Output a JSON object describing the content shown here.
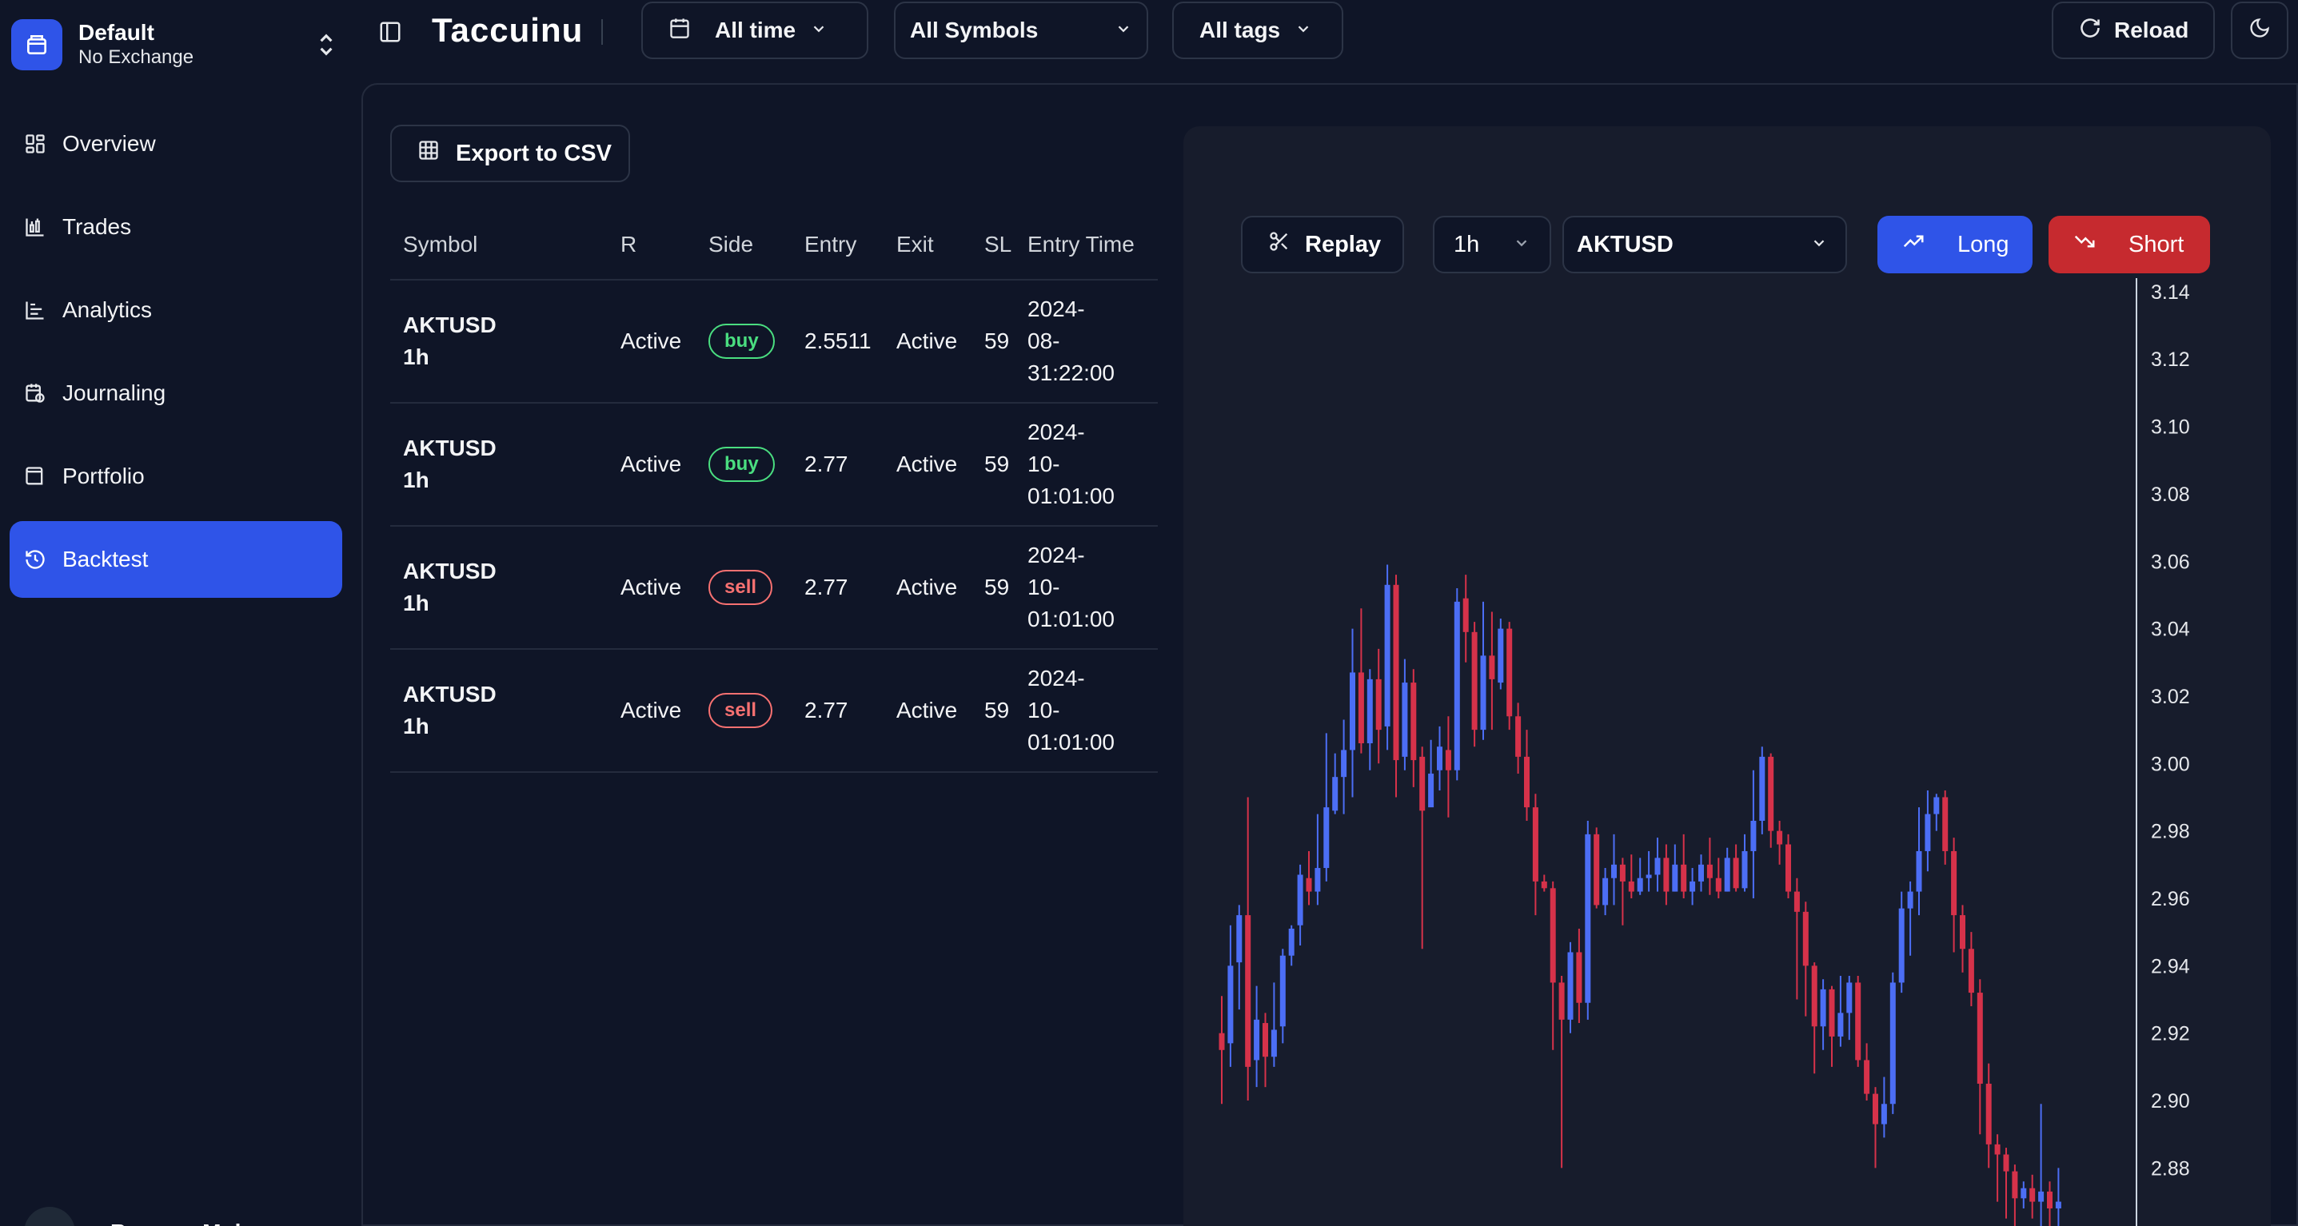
{
  "workspace": {
    "name": "Default",
    "exchange": "No Exchange"
  },
  "nav": [
    {
      "label": "Overview",
      "icon": "dashboard-icon"
    },
    {
      "label": "Trades",
      "icon": "chart-icon"
    },
    {
      "label": "Analytics",
      "icon": "bar-chart-icon"
    },
    {
      "label": "Journaling",
      "icon": "calendar-clock-icon"
    },
    {
      "label": "Portfolio",
      "icon": "wallet-icon"
    },
    {
      "label": "Backtest",
      "icon": "history-icon",
      "active": true
    }
  ],
  "user": {
    "name": "Bassem Mohem"
  },
  "topbar": {
    "title": "Taccuinu",
    "time_filter": "All time",
    "symbol_filter": "All Symbols",
    "tags_filter": "All tags",
    "reload": "Reload"
  },
  "backtest": {
    "export_label": "Export to CSV",
    "columns": [
      "Symbol",
      "R",
      "Side",
      "Entry",
      "Exit",
      "SL",
      "Entry Time"
    ],
    "rows": [
      {
        "symbol": "AKTUSD",
        "timeframe": "1h",
        "r": "Active",
        "side": "buy",
        "entry": "2.5511",
        "exit": "Active",
        "sl": "59",
        "time": [
          "2024-",
          "08-",
          "31:22:00"
        ]
      },
      {
        "symbol": "AKTUSD",
        "timeframe": "1h",
        "r": "Active",
        "side": "buy",
        "entry": "2.77",
        "exit": "Active",
        "sl": "59",
        "time": [
          "2024-",
          "10-",
          "01:01:00"
        ]
      },
      {
        "symbol": "AKTUSD",
        "timeframe": "1h",
        "r": "Active",
        "side": "sell",
        "entry": "2.77",
        "exit": "Active",
        "sl": "59",
        "time": [
          "2024-",
          "10-",
          "01:01:00"
        ]
      },
      {
        "symbol": "AKTUSD",
        "timeframe": "1h",
        "r": "Active",
        "side": "sell",
        "entry": "2.77",
        "exit": "Active",
        "sl": "59",
        "time": [
          "2024-",
          "10-",
          "01:01:00"
        ]
      }
    ]
  },
  "chart_controls": {
    "replay": "Replay",
    "timeframe": "1h",
    "symbol": "AKTUSD",
    "long": "Long",
    "short": "Short"
  },
  "chart_data": {
    "type": "candlestick",
    "symbol": "AKTUSD",
    "y_ticks": [
      "3.14",
      "3.12",
      "3.10",
      "3.08",
      "3.06",
      "3.04",
      "3.02",
      "3.00",
      "2.98",
      "2.96",
      "2.94",
      "2.92",
      "2.90",
      "2.88"
    ],
    "ylim": [
      2.868,
      3.144
    ],
    "up_color": "#4c6ef5",
    "down_color": "#d6324a",
    "candles": [
      [
        2.92,
        2.915,
        2.931,
        2.899
      ],
      [
        2.917,
        2.94,
        2.952,
        2.91
      ],
      [
        2.941,
        2.955,
        2.958,
        2.927
      ],
      [
        2.955,
        2.91,
        2.99,
        2.9
      ],
      [
        2.912,
        2.924,
        2.934,
        2.904
      ],
      [
        2.923,
        2.913,
        2.926,
        2.904
      ],
      [
        2.913,
        2.921,
        2.935,
        2.91
      ],
      [
        2.922,
        2.943,
        2.945,
        2.917
      ],
      [
        2.943,
        2.951,
        2.952,
        2.94
      ],
      [
        2.952,
        2.967,
        2.97,
        2.946
      ],
      [
        2.966,
        2.962,
        2.974,
        2.958
      ],
      [
        2.962,
        2.969,
        2.985,
        2.958
      ],
      [
        2.969,
        2.987,
        3.009,
        2.965
      ],
      [
        2.986,
        2.996,
        3.003,
        2.985
      ],
      [
        2.996,
        3.004,
        3.013,
        2.985
      ],
      [
        3.004,
        3.027,
        3.04,
        2.99
      ],
      [
        3.027,
        3.006,
        3.046,
        3.003
      ],
      [
        3.006,
        3.025,
        3.028,
        2.998
      ],
      [
        3.025,
        3.01,
        3.034,
        3.0
      ],
      [
        3.011,
        3.053,
        3.059,
        3.004
      ],
      [
        3.053,
        3.001,
        3.056,
        2.99
      ],
      [
        3.002,
        3.024,
        3.031,
        2.998
      ],
      [
        3.024,
        3.001,
        3.028,
        2.993
      ],
      [
        3.002,
        2.986,
        3.005,
        2.945
      ],
      [
        2.987,
        2.997,
        3.007,
        2.99
      ],
      [
        2.998,
        3.005,
        3.011,
        2.992
      ],
      [
        3.004,
        2.998,
        3.014,
        2.984
      ],
      [
        2.998,
        3.048,
        3.052,
        2.995
      ],
      [
        3.049,
        3.039,
        3.056,
        3.03
      ],
      [
        3.039,
        3.01,
        3.042,
        3.005
      ],
      [
        3.01,
        3.032,
        3.048,
        3.007
      ],
      [
        3.032,
        3.025,
        3.045,
        3.01
      ],
      [
        3.024,
        3.04,
        3.043,
        3.022
      ],
      [
        3.04,
        3.014,
        3.042,
        3.01
      ],
      [
        3.014,
        3.002,
        3.018,
        2.997
      ],
      [
        3.002,
        2.987,
        3.01,
        2.983
      ],
      [
        2.987,
        2.965,
        2.991,
        2.955
      ],
      [
        2.965,
        2.963,
        2.967,
        2.962
      ],
      [
        2.963,
        2.935,
        2.965,
        2.915
      ],
      [
        2.935,
        2.924,
        2.937,
        2.88
      ],
      [
        2.924,
        2.944,
        2.947,
        2.92
      ],
      [
        2.944,
        2.929,
        2.951,
        2.923
      ],
      [
        2.929,
        2.979,
        2.983,
        2.924
      ],
      [
        2.979,
        2.958,
        2.981,
        2.957
      ],
      [
        2.958,
        2.966,
        2.969,
        2.955
      ],
      [
        2.966,
        2.97,
        2.979,
        2.958
      ],
      [
        2.97,
        2.965,
        2.972,
        2.952
      ],
      [
        2.965,
        2.962,
        2.973,
        2.96
      ],
      [
        2.962,
        2.966,
        2.972,
        2.961
      ],
      [
        2.966,
        2.967,
        2.974,
        2.962
      ],
      [
        2.967,
        2.972,
        2.978,
        2.962
      ],
      [
        2.972,
        2.962,
        2.976,
        2.958
      ],
      [
        2.962,
        2.97,
        2.976,
        2.962
      ],
      [
        2.97,
        2.962,
        2.979,
        2.96
      ],
      [
        2.962,
        2.965,
        2.969,
        2.958
      ],
      [
        2.965,
        2.97,
        2.973,
        2.962
      ],
      [
        2.97,
        2.966,
        2.978,
        2.961
      ],
      [
        2.966,
        2.962,
        2.972,
        2.96
      ],
      [
        2.962,
        2.972,
        2.975,
        2.962
      ],
      [
        2.972,
        2.963,
        2.976,
        2.962
      ],
      [
        2.963,
        2.974,
        2.979,
        2.962
      ],
      [
        2.974,
        2.983,
        2.998,
        2.96
      ],
      [
        2.983,
        3.002,
        3.005,
        2.979
      ],
      [
        3.002,
        2.98,
        3.003,
        2.975
      ],
      [
        2.98,
        2.976,
        2.983,
        2.97
      ],
      [
        2.976,
        2.962,
        2.979,
        2.96
      ],
      [
        2.962,
        2.956,
        2.966,
        2.93
      ],
      [
        2.956,
        2.94,
        2.959,
        2.925
      ],
      [
        2.94,
        2.922,
        2.941,
        2.908
      ],
      [
        2.922,
        2.933,
        2.936,
        2.915
      ],
      [
        2.933,
        2.919,
        2.934,
        2.91
      ],
      [
        2.919,
        2.926,
        2.937,
        2.916
      ],
      [
        2.926,
        2.935,
        2.937,
        2.918
      ],
      [
        2.935,
        2.912,
        2.937,
        2.91
      ],
      [
        2.912,
        2.902,
        2.917,
        2.9
      ],
      [
        2.902,
        2.893,
        2.904,
        2.88
      ],
      [
        2.893,
        2.899,
        2.907,
        2.889
      ],
      [
        2.899,
        2.935,
        2.938,
        2.896
      ],
      [
        2.935,
        2.957,
        2.962,
        2.932
      ],
      [
        2.957,
        2.962,
        2.965,
        2.943
      ],
      [
        2.962,
        2.974,
        2.987,
        2.955
      ],
      [
        2.974,
        2.985,
        2.992,
        2.968
      ],
      [
        2.985,
        2.99,
        2.991,
        2.98
      ],
      [
        2.99,
        2.974,
        2.992,
        2.97
      ],
      [
        2.974,
        2.955,
        2.978,
        2.944
      ],
      [
        2.955,
        2.945,
        2.958,
        2.938
      ],
      [
        2.945,
        2.932,
        2.95,
        2.928
      ],
      [
        2.932,
        2.905,
        2.936,
        2.89
      ],
      [
        2.905,
        2.887,
        2.911,
        2.88
      ],
      [
        2.887,
        2.884,
        2.89,
        2.87
      ],
      [
        2.884,
        2.879,
        2.886,
        2.865
      ],
      [
        2.879,
        2.871,
        2.881,
        2.86
      ],
      [
        2.871,
        2.874,
        2.876,
        2.868
      ],
      [
        2.874,
        2.87,
        2.878,
        2.865
      ],
      [
        2.87,
        2.873,
        2.899,
        2.86
      ],
      [
        2.873,
        2.868,
        2.876,
        2.86
      ],
      [
        2.868,
        2.87,
        2.88,
        2.862
      ]
    ]
  }
}
